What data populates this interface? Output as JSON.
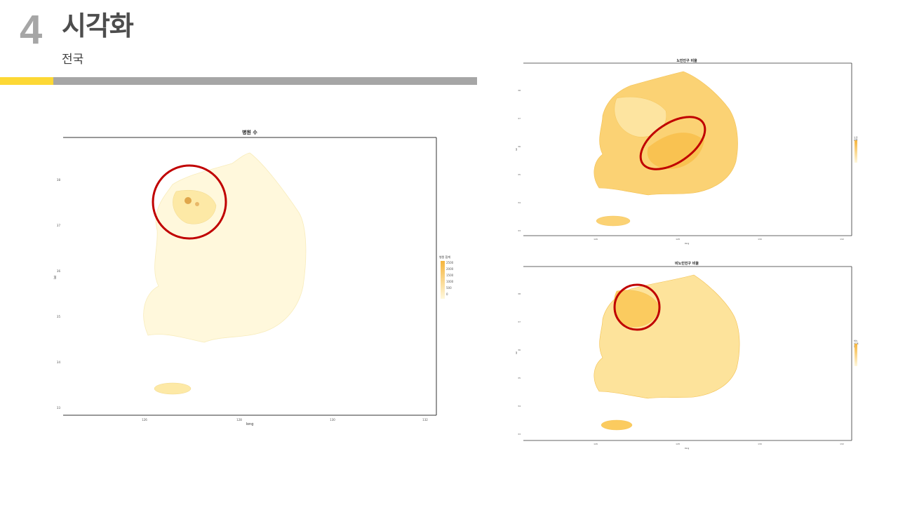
{
  "header": {
    "section_number": "4",
    "title": "시각화",
    "subtitle": "전국"
  },
  "maps": [
    {
      "title": "병원 수",
      "x_axis_label": "long",
      "y_axis_label": "lat",
      "x_ticks": [
        "126",
        "128",
        "130",
        "132"
      ],
      "y_ticks": [
        "38",
        "37",
        "36",
        "35",
        "34",
        "33"
      ],
      "legend_title": "병원 합계",
      "legend_values": [
        "2500",
        "2000",
        "1500",
        "1000",
        "500",
        "0"
      ],
      "highlight": "capital-area"
    },
    {
      "title": "노인인구 비율",
      "x_axis_label": "long",
      "y_axis_label": "lat",
      "x_ticks": [
        "126",
        "128",
        "130",
        "132"
      ],
      "y_ticks": [
        "38",
        "37",
        "36",
        "35",
        "34",
        "33"
      ],
      "legend_title": "노인 비율",
      "legend_values": [
        "40",
        "30",
        "20",
        "10"
      ],
      "highlight": "central-inland"
    },
    {
      "title": "비노인인구 비율",
      "x_axis_label": "long",
      "y_axis_label": "lat",
      "x_ticks": [
        "126",
        "128",
        "130",
        "132"
      ],
      "y_ticks": [
        "38",
        "37",
        "36",
        "35",
        "34",
        "33"
      ],
      "legend_title": "비노인 비율",
      "legend_values": [
        "90",
        "80",
        "70",
        "60"
      ],
      "highlight": "capital-area"
    }
  ],
  "colors": {
    "accent_yellow": "#fdd835",
    "bar_gray": "#a6a6a6",
    "highlight_circle": "#c00000",
    "choropleth_light": "#fff8dc",
    "choropleth_dark": "#f5b53d"
  }
}
